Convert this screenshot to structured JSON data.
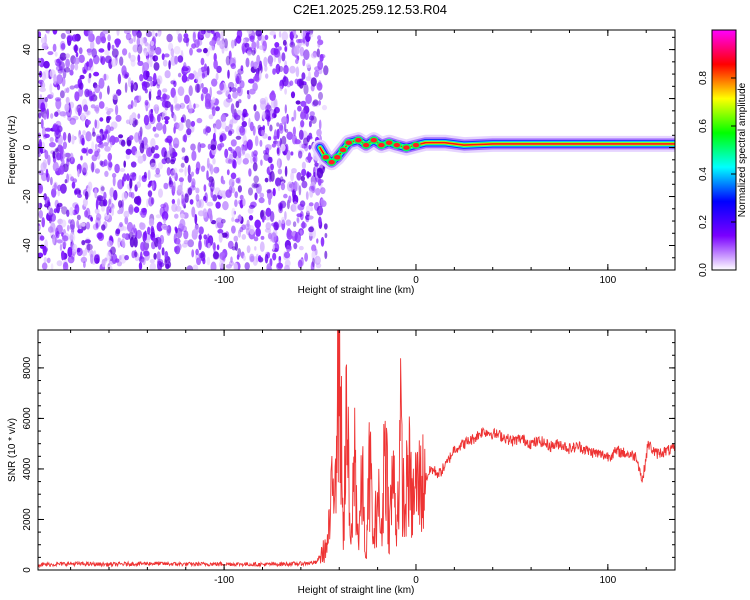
{
  "title": "C2E1.2025.259.12.53.R04",
  "chart_data": [
    {
      "type": "heatmap",
      "xlabel": "Height of straight line (km)",
      "ylabel": "Frequency (Hz)",
      "xlim": [
        -197,
        135
      ],
      "ylim": [
        -50,
        48
      ],
      "x_ticks": [
        -100,
        0,
        100
      ],
      "y_ticks": [
        -40,
        -20,
        0,
        20,
        40
      ],
      "noise_region_x": [
        -197,
        -50
      ],
      "signal_track": [
        {
          "x": -50,
          "y": 0
        },
        {
          "x": -47,
          "y": -4
        },
        {
          "x": -44,
          "y": -6
        },
        {
          "x": -41,
          "y": -4
        },
        {
          "x": -38,
          "y": -1
        },
        {
          "x": -35,
          "y": 2
        },
        {
          "x": -30,
          "y": 3
        },
        {
          "x": -26,
          "y": 1
        },
        {
          "x": -22,
          "y": 3
        },
        {
          "x": -18,
          "y": 1
        },
        {
          "x": -14,
          "y": 2
        },
        {
          "x": -10,
          "y": 1
        },
        {
          "x": -5,
          "y": 0
        },
        {
          "x": 0,
          "y": 1
        },
        {
          "x": 5,
          "y": 2
        },
        {
          "x": 15,
          "y": 2
        },
        {
          "x": 25,
          "y": 1
        },
        {
          "x": 40,
          "y": 1.5
        },
        {
          "x": 60,
          "y": 1.5
        },
        {
          "x": 80,
          "y": 1.5
        },
        {
          "x": 100,
          "y": 1.5
        },
        {
          "x": 120,
          "y": 1.5
        },
        {
          "x": 135,
          "y": 1.5
        }
      ],
      "colorbar": {
        "label": "Normalized spectral amplitude",
        "range": [
          0,
          1
        ],
        "ticks": [
          0.0,
          0.2,
          0.4,
          0.6,
          0.8
        ],
        "tick_labels": [
          "0.0",
          "0.2",
          "0.4",
          "0.6",
          "0.8"
        ],
        "colors": [
          "#ffffff",
          "#7a00ff",
          "#0000ff",
          "#00ffff",
          "#00ff00",
          "#ffff00",
          "#ff0000",
          "#ff00ff"
        ]
      }
    },
    {
      "type": "line",
      "xlabel": "Height of straight line (km)",
      "ylabel": "SNR (10 * v/v)",
      "xlim": [
        -197,
        135
      ],
      "ylim": [
        0,
        9500
      ],
      "x_ticks": [
        -100,
        0,
        100
      ],
      "y_ticks": [
        0,
        2000,
        4000,
        6000,
        8000
      ],
      "color": "#ee3333",
      "series": [
        {
          "x": [
            -197,
            -180,
            -160,
            -140,
            -120,
            -100,
            -80,
            -60,
            -52,
            -46,
            -43,
            -40,
            -38,
            -36,
            -34,
            -32,
            -30,
            -28,
            -26,
            -24,
            -22,
            -20,
            -18,
            -16,
            -14,
            -12,
            -10,
            -8,
            -6,
            -4,
            -2,
            0,
            4,
            8,
            12,
            16,
            20,
            25,
            30,
            35,
            40,
            45,
            50,
            55,
            60,
            65,
            70,
            75,
            80,
            85,
            90,
            95,
            100,
            105,
            110,
            115,
            118,
            121,
            125,
            130,
            135
          ],
          "y": [
            200,
            250,
            220,
            260,
            230,
            240,
            220,
            250,
            300,
            1000,
            3500,
            9400,
            1500,
            6000,
            500,
            4800,
            1000,
            3600,
            300,
            4500,
            800,
            3200,
            1200,
            5800,
            1500,
            3800,
            1800,
            5200,
            2000,
            4200,
            2500,
            3300,
            3500,
            4000,
            3800,
            4200,
            4800,
            5000,
            5200,
            5500,
            5400,
            5300,
            5100,
            5200,
            5000,
            5100,
            4900,
            5000,
            4800,
            4900,
            4700,
            4600,
            4500,
            4700,
            4600,
            4500,
            3500,
            5000,
            4600,
            4700,
            4800
          ]
        }
      ]
    }
  ]
}
